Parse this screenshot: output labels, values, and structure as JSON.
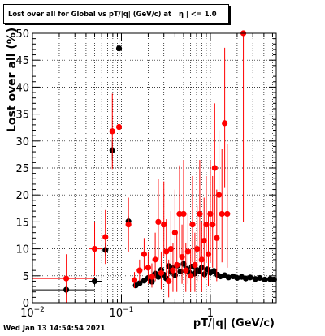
{
  "chart_data": {
    "type": "scatter",
    "title": "Lost over all for Global vs pT/|q| (GeV/c) at | η | <= 1.0",
    "xlabel": "pT/|q| (GeV/c)",
    "ylabel": "Lost over all (%)",
    "x_scale": "log",
    "xlim": [
      0.01,
      5.5
    ],
    "ylim": [
      0,
      50
    ],
    "x_ticks": [
      {
        "label": "10",
        "sup": "−2",
        "value": 0.01
      },
      {
        "label": "10",
        "sup": "−1",
        "value": 0.1
      },
      {
        "label": "1",
        "sup": "",
        "value": 1
      }
    ],
    "y_ticks": [
      "0",
      "5",
      "10",
      "15",
      "20",
      "25",
      "30",
      "35",
      "40",
      "45",
      "50"
    ],
    "grid": true,
    "series": [
      {
        "color": "#000000",
        "points": [
          {
            "x": 0.024,
            "y": 2.4,
            "xlo": 0.01,
            "xhi": 0.05,
            "ylo": 0.8,
            "yhi": 0.8
          },
          {
            "x": 0.05,
            "y": 4.0,
            "xlo": 0.043,
            "xhi": 0.06,
            "ylo": 0.8,
            "yhi": 0.8
          },
          {
            "x": 0.066,
            "y": 9.8,
            "xlo": 0.062,
            "xhi": 0.071,
            "ylo": 1.2,
            "yhi": 1.2
          },
          {
            "x": 0.079,
            "y": 28.3,
            "xlo": 0.077,
            "xhi": 0.081,
            "ylo": 1.8,
            "yhi": 1.8
          },
          {
            "x": 0.094,
            "y": 47.2,
            "xlo": 0.092,
            "xhi": 0.096,
            "ylo": 1.9,
            "yhi": 1.9
          },
          {
            "x": 0.12,
            "y": 15.1,
            "xlo": 0.115,
            "xhi": 0.125,
            "ylo": 1.0,
            "yhi": 1.0
          },
          {
            "x": 0.145,
            "y": 3.2
          },
          {
            "x": 0.16,
            "y": 3.6
          },
          {
            "x": 0.18,
            "y": 4.1
          },
          {
            "x": 0.2,
            "y": 4.6
          },
          {
            "x": 0.22,
            "y": 3.9
          },
          {
            "x": 0.24,
            "y": 5.4
          },
          {
            "x": 0.26,
            "y": 4.8
          },
          {
            "x": 0.28,
            "y": 6.1
          },
          {
            "x": 0.3,
            "y": 5.2
          },
          {
            "x": 0.32,
            "y": 4.5
          },
          {
            "x": 0.34,
            "y": 6.8
          },
          {
            "x": 0.36,
            "y": 5.7
          },
          {
            "x": 0.38,
            "y": 6.4
          },
          {
            "x": 0.4,
            "y": 5.1
          },
          {
            "x": 0.43,
            "y": 6.9
          },
          {
            "x": 0.46,
            "y": 5.8
          },
          {
            "x": 0.5,
            "y": 7.2
          },
          {
            "x": 0.54,
            "y": 6.3
          },
          {
            "x": 0.58,
            "y": 5.6
          },
          {
            "x": 0.62,
            "y": 6.7
          },
          {
            "x": 0.66,
            "y": 5.4
          },
          {
            "x": 0.7,
            "y": 6.1
          },
          {
            "x": 0.75,
            "y": 5.9
          },
          {
            "x": 0.8,
            "y": 6.5
          },
          {
            "x": 0.86,
            "y": 5.3
          },
          {
            "x": 0.92,
            "y": 6.2
          },
          {
            "x": 1.0,
            "y": 5.6
          },
          {
            "x": 1.1,
            "y": 5.9
          },
          {
            "x": 1.2,
            "y": 5.2
          },
          {
            "x": 1.3,
            "y": 4.9
          },
          {
            "x": 1.45,
            "y": 5.1
          },
          {
            "x": 1.6,
            "y": 4.7
          },
          {
            "x": 1.8,
            "y": 4.9
          },
          {
            "x": 2.0,
            "y": 4.6
          },
          {
            "x": 2.25,
            "y": 4.8
          },
          {
            "x": 2.5,
            "y": 4.5
          },
          {
            "x": 2.8,
            "y": 4.7
          },
          {
            "x": 3.2,
            "y": 4.4
          },
          {
            "x": 3.6,
            "y": 4.6
          },
          {
            "x": 4.1,
            "y": 4.3
          },
          {
            "x": 4.7,
            "y": 4.4
          },
          {
            "x": 5.2,
            "y": 4.3
          }
        ]
      },
      {
        "color": "#ff0000",
        "points": [
          {
            "x": 0.024,
            "y": 4.5,
            "xlo": 0.01,
            "xhi": 0.05,
            "ylo": 4.5,
            "yhi": 4.5
          },
          {
            "x": 0.05,
            "y": 10.0,
            "xlo": 0.043,
            "xhi": 0.06,
            "ylo": 5.0,
            "yhi": 5.0
          },
          {
            "x": 0.066,
            "y": 12.2,
            "xlo": 0.062,
            "xhi": 0.071,
            "ylo": 5.0,
            "yhi": 5.0
          },
          {
            "x": 0.079,
            "y": 31.8,
            "xlo": 0.077,
            "xhi": 0.081,
            "ylo": 7.0,
            "yhi": 7.0
          },
          {
            "x": 0.094,
            "y": 32.6,
            "xlo": 0.092,
            "xhi": 0.096,
            "ylo": 8.0,
            "yhi": 8.0
          },
          {
            "x": 0.12,
            "y": 14.5,
            "xlo": 0.115,
            "xhi": 0.125,
            "ylo": 5.0,
            "yhi": 5.0
          },
          {
            "x": 0.14,
            "y": 4.2,
            "ylo": 1.5,
            "yhi": 1.5
          },
          {
            "x": 0.16,
            "y": 6.0,
            "ylo": 2.0,
            "yhi": 2.0
          },
          {
            "x": 0.18,
            "y": 9.0,
            "ylo": 3.0,
            "yhi": 3.0
          },
          {
            "x": 0.2,
            "y": 6.5,
            "ylo": 3.0,
            "yhi": 3.0
          },
          {
            "x": 0.22,
            "y": 4.8,
            "ylo": 2.0,
            "yhi": 2.5
          },
          {
            "x": 0.24,
            "y": 8.0,
            "ylo": 4.0,
            "yhi": 5.0
          },
          {
            "x": 0.26,
            "y": 15.0,
            "ylo": 7.0,
            "yhi": 8.0
          },
          {
            "x": 0.28,
            "y": 5.5,
            "ylo": 3.0,
            "yhi": 4.0
          },
          {
            "x": 0.3,
            "y": 14.5,
            "ylo": 6.0,
            "yhi": 8.0
          },
          {
            "x": 0.32,
            "y": 9.5,
            "ylo": 5.0,
            "yhi": 6.0
          },
          {
            "x": 0.34,
            "y": 4.0,
            "ylo": 3.0,
            "yhi": 4.0
          },
          {
            "x": 0.36,
            "y": 10.0,
            "ylo": 5.0,
            "yhi": 7.0
          },
          {
            "x": 0.38,
            "y": 6.0,
            "ylo": 4.0,
            "yhi": 5.0
          },
          {
            "x": 0.4,
            "y": 13.0,
            "ylo": 6.0,
            "yhi": 8.0
          },
          {
            "x": 0.42,
            "y": 7.0,
            "ylo": 5.0,
            "yhi": 6.0
          },
          {
            "x": 0.45,
            "y": 16.5,
            "ylo": 8.0,
            "yhi": 9.0
          },
          {
            "x": 0.48,
            "y": 8.5,
            "ylo": 5.0,
            "yhi": 6.0
          },
          {
            "x": 0.5,
            "y": 16.5,
            "ylo": 8.0,
            "yhi": 10.0
          },
          {
            "x": 0.53,
            "y": 6.0,
            "ylo": 4.0,
            "yhi": 5.0
          },
          {
            "x": 0.56,
            "y": 9.5,
            "ylo": 6.0,
            "yhi": 7.0
          },
          {
            "x": 0.6,
            "y": 5.0,
            "ylo": 3.0,
            "yhi": 5.0
          },
          {
            "x": 0.63,
            "y": 14.5,
            "ylo": 7.0,
            "yhi": 9.0
          },
          {
            "x": 0.67,
            "y": 7.0,
            "ylo": 5.0,
            "yhi": 6.0
          },
          {
            "x": 0.71,
            "y": 10.0,
            "ylo": 6.0,
            "yhi": 8.0
          },
          {
            "x": 0.76,
            "y": 16.5,
            "ylo": 9.0,
            "yhi": 10.0
          },
          {
            "x": 0.8,
            "y": 8.0,
            "ylo": 6.0,
            "yhi": 7.0
          },
          {
            "x": 0.85,
            "y": 11.5,
            "ylo": 7.0,
            "yhi": 8.0
          },
          {
            "x": 0.9,
            "y": 14.5,
            "ylo": 7.0,
            "yhi": 9.0
          },
          {
            "x": 0.95,
            "y": 9.0,
            "ylo": 6.0,
            "yhi": 8.0
          },
          {
            "x": 1.0,
            "y": 16.5,
            "ylo": 9.0,
            "yhi": 10.0
          },
          {
            "x": 1.06,
            "y": 14.5,
            "ylo": 8.0,
            "yhi": 9.0
          },
          {
            "x": 1.12,
            "y": 25.0,
            "ylo": 10.0,
            "yhi": 12.0
          },
          {
            "x": 1.18,
            "y": 12.0,
            "ylo": 8.0,
            "yhi": 9.0
          },
          {
            "x": 1.25,
            "y": 20.0,
            "ylo": 10.0,
            "yhi": 12.0
          },
          {
            "x": 1.35,
            "y": 16.5,
            "ylo": 9.0,
            "yhi": 12.0
          },
          {
            "x": 1.45,
            "y": 33.3,
            "ylo": 12.0,
            "yhi": 14.0
          },
          {
            "x": 1.55,
            "y": 16.5,
            "ylo": 10.0,
            "yhi": 13.0
          },
          {
            "x": 2.35,
            "y": 50.0,
            "ylo": 35.0,
            "yhi": 0.0
          }
        ]
      }
    ]
  },
  "footer": {
    "timestamp": "Wed Jan 13 14:54:54 2021"
  }
}
